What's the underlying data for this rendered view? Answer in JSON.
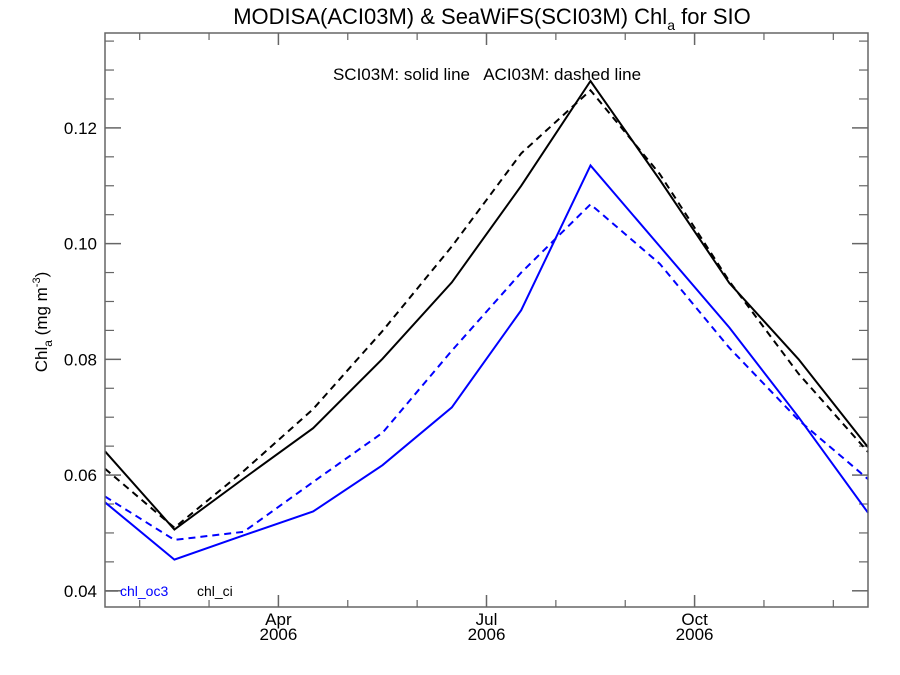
{
  "chart_data": {
    "type": "line",
    "title": {
      "main": "MODISA(ACI03M) & SeaWiFS(SCI03M)  Chl",
      "subscript": "a",
      "suffix": " for SIO"
    },
    "annotation": "SCI03M: solid line   ACI03M: dashed line",
    "ylabel": {
      "main": "Chl",
      "subscript": "a",
      "units": " (mg m",
      "superscript": "-3",
      "close": ")"
    },
    "xlabel": "",
    "x_months": [
      "2006-01",
      "2006-02",
      "2006-03",
      "2006-04",
      "2006-05",
      "2006-06",
      "2006-07",
      "2006-08",
      "2006-09",
      "2006-10",
      "2006-11",
      "2006-12"
    ],
    "x_range_months": [
      0.5,
      11.97
    ],
    "ylim": [
      0.0372,
      0.1364
    ],
    "yticks": [
      0.04,
      0.06,
      0.08,
      0.1,
      0.12
    ],
    "ytick_labels": [
      "0.04",
      "0.06",
      "0.08",
      "0.10",
      "0.12"
    ],
    "y_minor_step": 0.005,
    "xticks_major": [
      {
        "month": 3,
        "label_top": "Apr",
        "label_bottom": "2006"
      },
      {
        "month": 6,
        "label_top": "Jul",
        "label_bottom": "2006"
      },
      {
        "month": 9,
        "label_top": "Oct",
        "label_bottom": "2006"
      }
    ],
    "xticks_minor_months": [
      1,
      2,
      4,
      5,
      7,
      8,
      10,
      11
    ],
    "grid": false,
    "legend": {
      "placement": "bottom-left",
      "entries": [
        {
          "label": "chl_oc3",
          "color": "#0000ff"
        },
        {
          "label": "chl_ci",
          "color": "#000000"
        }
      ]
    },
    "series": [
      {
        "name": "SCI03M chl_ci",
        "sensor": "SeaWiFS",
        "product": "chl_ci",
        "style": "solid",
        "color": "#000000",
        "values": [
          0.0641,
          0.0506,
          0.0594,
          0.0681,
          0.0801,
          0.0933,
          0.11,
          0.1281,
          0.111,
          0.0932,
          0.08,
          0.0648
        ]
      },
      {
        "name": "ACI03M chl_ci",
        "sensor": "MODISA",
        "product": "chl_ci",
        "style": "dashed",
        "color": "#000000",
        "values": [
          0.0611,
          0.0509,
          0.0607,
          0.0714,
          0.0849,
          0.0995,
          0.1156,
          0.1265,
          0.112,
          0.0935,
          0.0775,
          0.064
        ]
      },
      {
        "name": "SCI03M chl_oc3",
        "sensor": "SeaWiFS",
        "product": "chl_oc3",
        "style": "solid",
        "color": "#0000ff",
        "values": [
          0.0553,
          0.0454,
          0.0496,
          0.0537,
          0.0617,
          0.0717,
          0.0885,
          0.1135,
          0.0995,
          0.0855,
          0.07,
          0.0535
        ]
      },
      {
        "name": "ACI03M chl_oc3",
        "sensor": "MODISA",
        "product": "chl_oc3",
        "style": "dashed",
        "color": "#0000ff",
        "values": [
          0.0563,
          0.0488,
          0.0502,
          0.0588,
          0.0673,
          0.0815,
          0.095,
          0.1068,
          0.0965,
          0.082,
          0.0695,
          0.0593
        ]
      }
    ]
  }
}
